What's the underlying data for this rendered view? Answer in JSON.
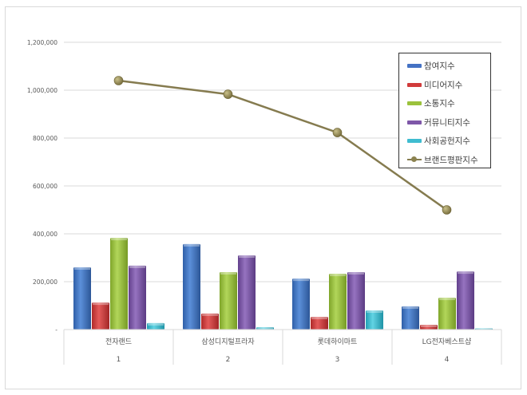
{
  "chart_data": {
    "type": "bar+line",
    "title": "",
    "xlabel": "",
    "ylabel": "",
    "ylim": [
      0,
      1200000
    ],
    "yticks": [
      0,
      200000,
      400000,
      600000,
      800000,
      1000000,
      1200000
    ],
    "ytick_labels": [
      "-",
      "200,000",
      "400,000",
      "600,000",
      "800,000",
      "1,000,000",
      "1,200,000"
    ],
    "grid": true,
    "legend_position": "top-right",
    "categories": [
      "전자랜드",
      "삼성디지털프라자",
      "롯데하이마트",
      "LG전자베스트샵"
    ],
    "category_ranks": [
      "1",
      "2",
      "3",
      "4"
    ],
    "series": [
      {
        "name": "참여지수",
        "type": "bar",
        "color": "#4472c4",
        "values": [
          260000,
          357000,
          213000,
          97000
        ]
      },
      {
        "name": "미디어지수",
        "type": "bar",
        "color": "#d13b3b",
        "values": [
          113000,
          67000,
          53000,
          20000
        ]
      },
      {
        "name": "소통지수",
        "type": "bar",
        "color": "#9bc23c",
        "values": [
          383000,
          240000,
          233000,
          133000
        ]
      },
      {
        "name": "커뮤니티지수",
        "type": "bar",
        "color": "#7e57a8",
        "values": [
          267000,
          310000,
          240000,
          243000
        ]
      },
      {
        "name": "사회공헌지수",
        "type": "bar",
        "color": "#3fbcd0",
        "values": [
          27000,
          10000,
          80000,
          5000
        ]
      },
      {
        "name": "브랜드평판지수",
        "type": "line",
        "color": "#857b4f",
        "values": [
          1040000,
          983000,
          823000,
          500000
        ]
      }
    ]
  },
  "legend": {
    "items": [
      {
        "label": "참여지수"
      },
      {
        "label": "미디어지수"
      },
      {
        "label": "소통지수"
      },
      {
        "label": "커뮤니티지수"
      },
      {
        "label": "사회공헌지수"
      },
      {
        "label": "브랜드평판지수"
      }
    ]
  }
}
